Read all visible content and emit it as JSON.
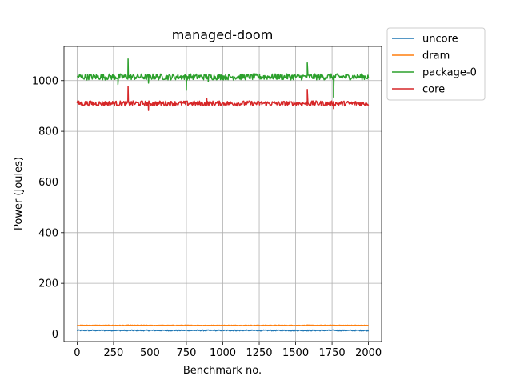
{
  "chart_data": {
    "type": "line",
    "title": "managed-doom",
    "xlabel": "Benchmark no.",
    "ylabel": "Power (Joules)",
    "xlim": [
      -90,
      2090
    ],
    "ylim": [
      -30,
      1135
    ],
    "xticks": [
      0,
      250,
      500,
      750,
      1000,
      1250,
      1500,
      1750,
      2000
    ],
    "yticks": [
      0,
      200,
      400,
      600,
      800,
      1000
    ],
    "grid": true,
    "legend_position": "outside-top-right",
    "series": [
      {
        "name": "uncore",
        "color": "#1f77b4",
        "mean": 14,
        "noise": 2,
        "spikes": []
      },
      {
        "name": "dram",
        "color": "#ff7f0e",
        "mean": 34,
        "noise": 1,
        "spikes": [
          [
            350,
            36
          ],
          [
            1580,
            36
          ]
        ]
      },
      {
        "name": "package-0",
        "color": "#2ca02c",
        "mean": 1015,
        "noise": 12,
        "spikes": [
          [
            350,
            1085
          ],
          [
            280,
            985
          ],
          [
            750,
            962
          ],
          [
            1580,
            1070
          ],
          [
            1760,
            935
          ],
          [
            490,
            990
          ],
          [
            900,
            995
          ]
        ]
      },
      {
        "name": "core",
        "color": "#d62728",
        "mean": 910,
        "noise": 10,
        "spikes": [
          [
            350,
            978
          ],
          [
            1580,
            965
          ],
          [
            490,
            882
          ],
          [
            1760,
            890
          ],
          [
            890,
            930
          ]
        ]
      }
    ]
  }
}
